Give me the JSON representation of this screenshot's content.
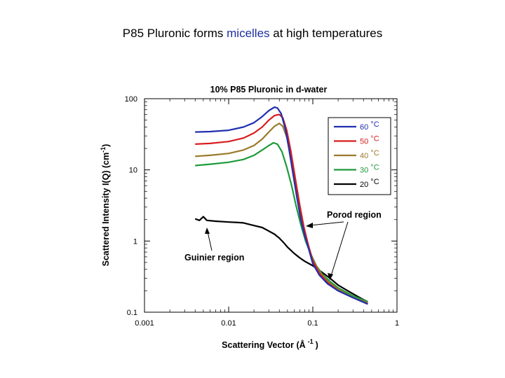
{
  "slide": {
    "title_pre": "P85 Pluronic forms ",
    "title_highlight": "micelles",
    "title_post": " at high temperatures",
    "highlight_color": "#1f2f9f"
  },
  "chart_data": {
    "type": "line",
    "title": "10% P85 Pluronic in d-water",
    "xlabel": "Scattering Vector (Å",
    "xlabel_sup": "-1",
    "xlabel_end": ")",
    "ylabel": "Scattered Intensity I(Q) (cm",
    "ylabel_sup": "-1",
    "ylabel_end": ")",
    "xscale": "log",
    "yscale": "log",
    "xlim": [
      0.001,
      1
    ],
    "ylim": [
      0.1,
      100
    ],
    "xticks": [
      {
        "value": 0.001,
        "label": "0.001"
      },
      {
        "value": 0.01,
        "label": "0.01"
      },
      {
        "value": 0.1,
        "label": "0.1"
      },
      {
        "value": 1,
        "label": "1"
      }
    ],
    "yticks": [
      {
        "value": 0.1,
        "label": "0.1"
      },
      {
        "value": 1,
        "label": "1"
      },
      {
        "value": 10,
        "label": "10"
      },
      {
        "value": 100,
        "label": "100"
      }
    ],
    "legend_position": "top-right",
    "series": [
      {
        "name": "60 °C",
        "name_num": "60 ",
        "name_unit": "°C",
        "color": "#1f2fb0",
        "label_color": "#1f2fb0",
        "points": [
          [
            0.004,
            34
          ],
          [
            0.006,
            34.5
          ],
          [
            0.01,
            36
          ],
          [
            0.015,
            40
          ],
          [
            0.02,
            46
          ],
          [
            0.025,
            56
          ],
          [
            0.03,
            68
          ],
          [
            0.035,
            76
          ],
          [
            0.038,
            74
          ],
          [
            0.042,
            62
          ],
          [
            0.047,
            38
          ],
          [
            0.052,
            20
          ],
          [
            0.058,
            9
          ],
          [
            0.065,
            4
          ],
          [
            0.072,
            2
          ],
          [
            0.08,
            1.2
          ],
          [
            0.09,
            0.75
          ],
          [
            0.1,
            0.48
          ],
          [
            0.12,
            0.33
          ],
          [
            0.15,
            0.25
          ],
          [
            0.2,
            0.2
          ],
          [
            0.3,
            0.16
          ],
          [
            0.45,
            0.13
          ]
        ]
      },
      {
        "name": "50 °C",
        "name_num": "50 ",
        "name_unit": "°C",
        "color": "#d81e1e",
        "label_color": "#d81e1e",
        "points": [
          [
            0.004,
            23
          ],
          [
            0.006,
            23.5
          ],
          [
            0.01,
            25
          ],
          [
            0.015,
            28
          ],
          [
            0.02,
            33
          ],
          [
            0.025,
            40
          ],
          [
            0.03,
            50
          ],
          [
            0.035,
            58
          ],
          [
            0.04,
            60
          ],
          [
            0.044,
            54
          ],
          [
            0.049,
            36
          ],
          [
            0.055,
            18
          ],
          [
            0.062,
            7.5
          ],
          [
            0.07,
            3.2
          ],
          [
            0.078,
            1.6
          ],
          [
            0.088,
            0.9
          ],
          [
            0.1,
            0.52
          ],
          [
            0.12,
            0.35
          ],
          [
            0.15,
            0.26
          ],
          [
            0.2,
            0.2
          ],
          [
            0.3,
            0.16
          ],
          [
            0.45,
            0.13
          ]
        ]
      },
      {
        "name": "40 °C",
        "name_num": "40 ",
        "name_unit": "°C",
        "color": "#9a7a2a",
        "label_color": "#9a7a2a",
        "points": [
          [
            0.004,
            15.5
          ],
          [
            0.006,
            16
          ],
          [
            0.01,
            17
          ],
          [
            0.015,
            19
          ],
          [
            0.02,
            22
          ],
          [
            0.025,
            27
          ],
          [
            0.03,
            34
          ],
          [
            0.035,
            41
          ],
          [
            0.04,
            45
          ],
          [
            0.044,
            41
          ],
          [
            0.05,
            27
          ],
          [
            0.057,
            13
          ],
          [
            0.064,
            5.5
          ],
          [
            0.072,
            2.5
          ],
          [
            0.08,
            1.3
          ],
          [
            0.09,
            0.8
          ],
          [
            0.1,
            0.55
          ],
          [
            0.12,
            0.37
          ],
          [
            0.15,
            0.27
          ],
          [
            0.2,
            0.21
          ],
          [
            0.3,
            0.16
          ],
          [
            0.45,
            0.135
          ]
        ]
      },
      {
        "name": "30 °C",
        "name_num": "30 ",
        "name_unit": "°C",
        "color": "#1e9a3a",
        "label_color": "#1e9a3a",
        "points": [
          [
            0.004,
            11.5
          ],
          [
            0.006,
            12
          ],
          [
            0.01,
            12.8
          ],
          [
            0.015,
            14
          ],
          [
            0.02,
            16
          ],
          [
            0.025,
            19
          ],
          [
            0.03,
            22
          ],
          [
            0.034,
            24
          ],
          [
            0.038,
            23
          ],
          [
            0.043,
            18
          ],
          [
            0.049,
            11
          ],
          [
            0.056,
            6
          ],
          [
            0.063,
            3.2
          ],
          [
            0.072,
            1.7
          ],
          [
            0.082,
            1
          ],
          [
            0.095,
            0.65
          ],
          [
            0.11,
            0.45
          ],
          [
            0.13,
            0.34
          ],
          [
            0.16,
            0.27
          ],
          [
            0.2,
            0.22
          ],
          [
            0.3,
            0.17
          ],
          [
            0.45,
            0.14
          ]
        ]
      },
      {
        "name": "20 °C",
        "name_num": "20 ",
        "name_unit": "°C",
        "color": "#000000",
        "label_color": "#000000",
        "points": [
          [
            0.004,
            2.05
          ],
          [
            0.0045,
            1.95
          ],
          [
            0.005,
            2.2
          ],
          [
            0.0055,
            1.95
          ],
          [
            0.007,
            1.9
          ],
          [
            0.01,
            1.85
          ],
          [
            0.013,
            1.82
          ],
          [
            0.015,
            1.8
          ],
          [
            0.02,
            1.65
          ],
          [
            0.025,
            1.55
          ],
          [
            0.03,
            1.38
          ],
          [
            0.035,
            1.25
          ],
          [
            0.04,
            1.1
          ],
          [
            0.045,
            0.95
          ],
          [
            0.05,
            0.82
          ],
          [
            0.06,
            0.67
          ],
          [
            0.07,
            0.58
          ],
          [
            0.08,
            0.52
          ],
          [
            0.1,
            0.45
          ],
          [
            0.13,
            0.36
          ],
          [
            0.16,
            0.3
          ],
          [
            0.2,
            0.24
          ],
          [
            0.26,
            0.2
          ],
          [
            0.33,
            0.17
          ],
          [
            0.4,
            0.15
          ],
          [
            0.45,
            0.14
          ]
        ]
      }
    ],
    "annotations": [
      {
        "id": "porod",
        "text": "Porod region"
      },
      {
        "id": "guinier",
        "text": "Guinier region"
      }
    ]
  }
}
